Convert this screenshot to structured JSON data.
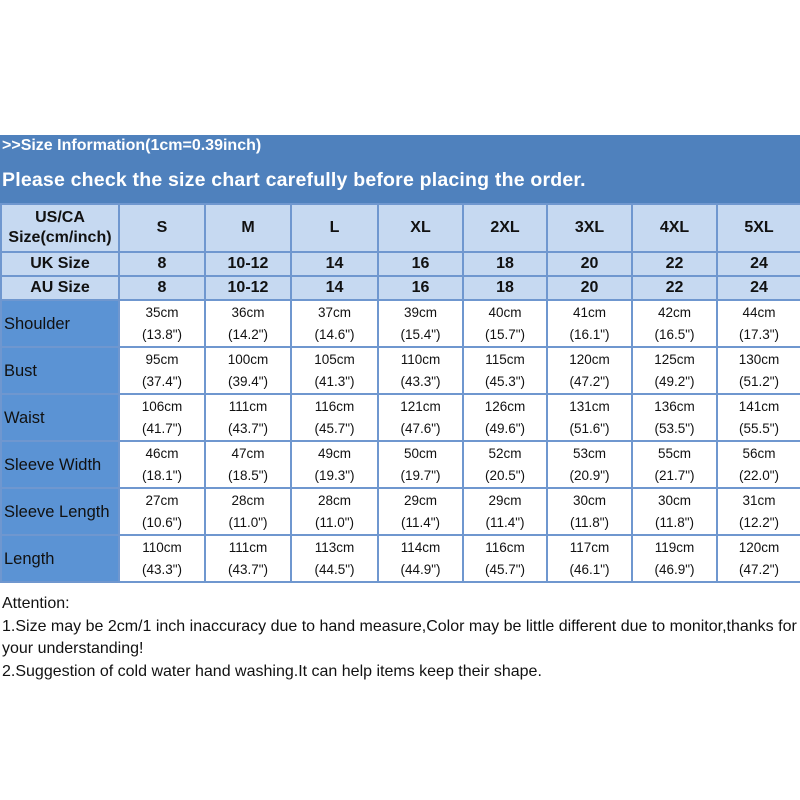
{
  "banner": {
    "line1": ">>Size Information(1cm=0.39inch)",
    "line2": "Please check the size chart carefully before placing the order."
  },
  "table": {
    "header_label": "US/CA Size(cm/inch)",
    "sizes": [
      "S",
      "M",
      "L",
      "XL",
      "2XL",
      "3XL",
      "4XL",
      "5XL"
    ],
    "uk": {
      "label": "UK Size",
      "values": [
        "8",
        "10-12",
        "14",
        "16",
        "18",
        "20",
        "22",
        "24"
      ]
    },
    "au": {
      "label": "AU Size",
      "values": [
        "8",
        "10-12",
        "14",
        "16",
        "18",
        "20",
        "22",
        "24"
      ]
    },
    "rows": [
      {
        "label": "Shoulder",
        "cm": [
          "35cm",
          "36cm",
          "37cm",
          "39cm",
          "40cm",
          "41cm",
          "42cm",
          "44cm"
        ],
        "inch": [
          "(13.8\")",
          "(14.2\")",
          "(14.6\")",
          "(15.4\")",
          "(15.7\")",
          "(16.1\")",
          "(16.5\")",
          "(17.3\")"
        ]
      },
      {
        "label": "Bust",
        "cm": [
          "95cm",
          "100cm",
          "105cm",
          "110cm",
          "115cm",
          "120cm",
          "125cm",
          "130cm"
        ],
        "inch": [
          "(37.4\")",
          "(39.4\")",
          "(41.3\")",
          "(43.3\")",
          "(45.3\")",
          "(47.2\")",
          "(49.2\")",
          "(51.2\")"
        ]
      },
      {
        "label": "Waist",
        "cm": [
          "106cm",
          "111cm",
          "116cm",
          "121cm",
          "126cm",
          "131cm",
          "136cm",
          "141cm"
        ],
        "inch": [
          "(41.7\")",
          "(43.7\")",
          "(45.7\")",
          "(47.6\")",
          "(49.6\")",
          "(51.6\")",
          "(53.5\")",
          "(55.5\")"
        ]
      },
      {
        "label": "Sleeve Width",
        "cm": [
          "46cm",
          "47cm",
          "49cm",
          "50cm",
          "52cm",
          "53cm",
          "55cm",
          "56cm"
        ],
        "inch": [
          "(18.1\")",
          "(18.5\")",
          "(19.3\")",
          "(19.7\")",
          "(20.5\")",
          "(20.9\")",
          "(21.7\")",
          "(22.0\")"
        ]
      },
      {
        "label": "Sleeve Length",
        "cm": [
          "27cm",
          "28cm",
          "28cm",
          "29cm",
          "29cm",
          "30cm",
          "30cm",
          "31cm"
        ],
        "inch": [
          "(10.6\")",
          "(11.0\")",
          "(11.0\")",
          "(11.4\")",
          "(11.4\")",
          "(11.8\")",
          "(11.8\")",
          "(12.2\")"
        ]
      },
      {
        "label": "Length",
        "cm": [
          "110cm",
          "111cm",
          "113cm",
          "114cm",
          "116cm",
          "117cm",
          "119cm",
          "120cm"
        ],
        "inch": [
          "(43.3\")",
          "(43.7\")",
          "(44.5\")",
          "(44.9\")",
          "(45.7\")",
          "(46.1\")",
          "(46.9\")",
          "(47.2\")"
        ]
      }
    ]
  },
  "attention": {
    "title": "Attention:",
    "line1": "1.Size may be 2cm/1 inch inaccuracy due to hand measure,Color may be little different due to monitor,thanks for your understanding!",
    "line2": "2.Suggestion of cold water hand washing.It can help items keep their shape."
  }
}
